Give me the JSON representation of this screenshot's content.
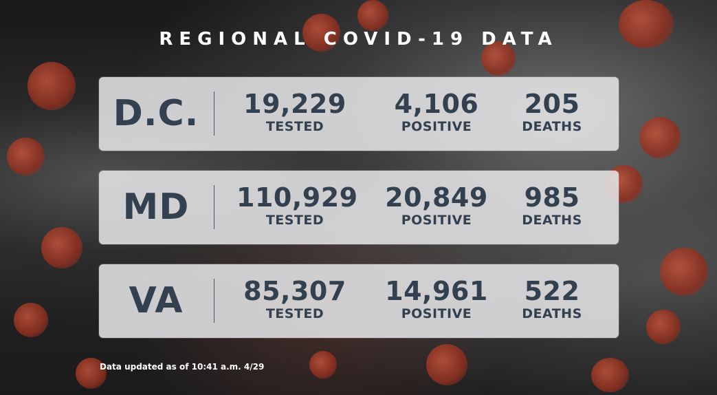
{
  "title": "REGIONAL COVID-19 DATA",
  "regions": [
    {
      "name": "D.C.",
      "tested": {
        "value": "19,229",
        "label": "TESTED"
      },
      "positive": {
        "value": "4,106",
        "label": "POSITIVE"
      },
      "deaths": {
        "value": "205",
        "label": "DEATHS"
      }
    },
    {
      "name": "MD",
      "tested": {
        "value": "110,929",
        "label": "TESTED"
      },
      "positive": {
        "value": "20,849",
        "label": "POSITIVE"
      },
      "deaths": {
        "value": "985",
        "label": "DEATHS"
      }
    },
    {
      "name": "VA",
      "tested": {
        "value": "85,307",
        "label": "TESTED"
      },
      "positive": {
        "value": "14,961",
        "label": "POSITIVE"
      },
      "deaths": {
        "value": "522",
        "label": "DEATHS"
      }
    }
  ],
  "footnote": "Data updated as of 10:41 a.m. 4/29",
  "colors": {
    "text_dark": "#33404f",
    "panel": "#e8e8ea",
    "accent_virus": "#a8402a"
  }
}
